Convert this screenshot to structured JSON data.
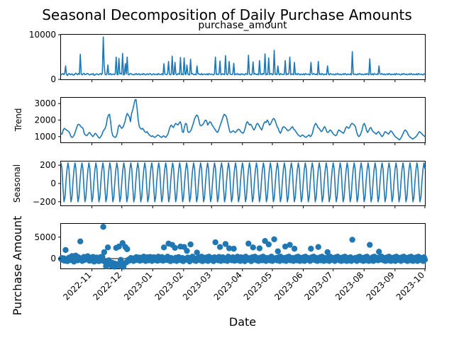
{
  "figure": {
    "title": "Seasonal Decomposition of Daily Purchase Amounts",
    "xlabel": "Date",
    "ylabel": "Purchase Amount"
  },
  "chart_data": [
    {
      "type": "line",
      "title": "purchase_amount",
      "ylabel": "",
      "x_range": [
        "2022-10-01",
        "2023-10-01"
      ],
      "ylim": [
        0,
        10000
      ],
      "yticks": [
        "0",
        "10000"
      ],
      "values": [
        1000,
        1150,
        1300,
        1050,
        1250,
        3000,
        1100,
        850,
        1200,
        1300,
        1050,
        1100,
        1250,
        1000,
        950,
        1150,
        1400,
        1200,
        1050,
        1300,
        1100,
        5600,
        1150,
        1000,
        1200,
        1350,
        1050,
        1100,
        1250,
        1300,
        1150,
        1000,
        1050,
        1200,
        1100,
        1300,
        900,
        1000,
        1150,
        1250,
        1100,
        1000,
        1200,
        1300,
        1050,
        1400,
        9500,
        3000,
        1100,
        1000,
        1200,
        3200,
        1050,
        1150,
        1300,
        1000,
        1100,
        1200,
        1050,
        1250,
        5000,
        1100,
        1000,
        4700,
        1200,
        1300,
        1150,
        5800,
        1000,
        1050,
        3500,
        1200,
        5000,
        1100,
        1000,
        1250,
        1300,
        1150,
        1050,
        1000,
        1200,
        1100,
        1300,
        1050,
        1150,
        1250,
        1000,
        1100,
        1200,
        1050,
        1300,
        1100,
        1000,
        1150,
        1250,
        1050,
        1200,
        1300,
        1100,
        1000,
        1150,
        1250,
        1050,
        1100,
        1200,
        1000,
        1300,
        1150,
        1050,
        1100,
        1250,
        1000,
        3500,
        1200,
        1100,
        1050,
        1300,
        4000,
        1150,
        1000,
        1200,
        5200,
        1100,
        1050,
        3800,
        1250,
        1000,
        1150,
        1300,
        1100,
        4900,
        1050,
        1200,
        1000,
        4800,
        1150,
        1100,
        3200,
        1250,
        1050,
        1000,
        4500,
        1200,
        1300,
        1100,
        1050,
        1150,
        1000,
        3000,
        1200,
        1250,
        1100,
        1050,
        1300,
        1000,
        1150,
        1200,
        1100,
        1050,
        1250,
        1000,
        1300,
        1150,
        1100,
        1200,
        1050,
        1000,
        1250,
        5000,
        1100,
        1200,
        1050,
        1300,
        4100,
        1000,
        1150,
        1250,
        1100,
        1050,
        5300,
        1200,
        1000,
        1300,
        4000,
        1150,
        1100,
        1050,
        1250,
        3600,
        1000,
        1200,
        1100,
        1300,
        1050,
        1150,
        1000,
        1250,
        1100,
        1200,
        1050,
        1000,
        1300,
        1150,
        1100,
        5400,
        1200,
        1050,
        1000,
        1250,
        3900,
        1100,
        1300,
        1150,
        1050,
        1200,
        1000,
        4200,
        1100,
        1250,
        1050,
        1300,
        1150,
        5700,
        1000,
        1200,
        1100,
        4800,
        1050,
        1250,
        1300,
        1000,
        1150,
        6500,
        1100,
        1200,
        1050,
        3000,
        1250,
        1000,
        1300,
        1150,
        1100,
        1050,
        1200,
        4200,
        1000,
        1250,
        1100,
        1300,
        5000,
        1050,
        1150,
        1200,
        1000,
        3800,
        1100,
        1250,
        1050,
        1300,
        1150,
        1000,
        1200,
        1100,
        1050,
        1250,
        1000,
        1300,
        1150,
        1100,
        1200,
        1050,
        1000,
        3800,
        1250,
        1100,
        1300,
        1150,
        1050,
        1200,
        1000,
        4000,
        1100,
        1250,
        1050,
        1300,
        1150,
        1000,
        1200,
        1100,
        1050,
        3000,
        1250,
        1000,
        1300,
        1150,
        1100,
        1200,
        1050,
        1000,
        1250,
        1100,
        1300,
        1150,
        1050,
        1200,
        1000,
        1100,
        1250,
        1050,
        1300,
        1150,
        1000,
        1200,
        1100,
        1050,
        1250,
        1000,
        6200,
        1150,
        1100,
        1200,
        1050,
        1000,
        1250,
        1100,
        1300,
        1150,
        1050,
        1200,
        1000,
        1100,
        1250,
        1050,
        1300,
        1150,
        1000,
        4600,
        1100,
        1050,
        1250,
        1000,
        1300,
        1150,
        1100,
        1200,
        1050,
        3000,
        1250,
        1100,
        1300,
        1150,
        1050,
        1200,
        1000,
        1100,
        1250,
        1050,
        1300,
        1150,
        1000,
        1200,
        1100,
        1050,
        1250,
        1000,
        1300,
        1150,
        1100,
        1200,
        1050,
        1000,
        1250,
        1100,
        1300,
        1150,
        1050,
        1200,
        1000,
        1100,
        1250,
        1050,
        1300,
        1150,
        1000,
        1200,
        1100,
        1050,
        1250,
        1000,
        1300,
        1150,
        1100,
        1200,
        1050,
        1000,
        1250,
        1100
      ]
    },
    {
      "type": "line",
      "title": "",
      "ylabel": "Trend",
      "x_range": [
        "2022-10-01",
        "2023-10-01"
      ],
      "ylim": [
        650,
        3350
      ],
      "yticks": [
        "1000",
        "2000",
        "3000"
      ],
      "values": [
        1200,
        1150,
        1400,
        1500,
        1450,
        1400,
        1350,
        1300,
        1200,
        1000,
        950,
        1000,
        1100,
        1300,
        1500,
        1700,
        1750,
        1700,
        1600,
        1550,
        1500,
        1200,
        1100,
        1050,
        1100,
        1200,
        1250,
        1150,
        1050,
        1000,
        1100,
        1200,
        1150,
        1050,
        950,
        900,
        1000,
        1100,
        1300,
        1400,
        1500,
        1700,
        2100,
        2300,
        2350,
        1900,
        1300,
        1050,
        1000,
        950,
        1000,
        1200,
        1600,
        1700,
        1600,
        1500,
        1550,
        1700,
        1900,
        2200,
        2400,
        2300,
        2200,
        1900,
        2400,
        2600,
        2900,
        3200,
        3250,
        2700,
        2000,
        1600,
        1500,
        1450,
        1500,
        1400,
        1300,
        1250,
        1300,
        1200,
        1100,
        1050,
        1000,
        1050,
        1000,
        950,
        1000,
        1050,
        1100,
        1050,
        1000,
        950,
        1000,
        1050,
        1000,
        950,
        1050,
        1150,
        1400,
        1600,
        1700,
        1600,
        1550,
        1700,
        1800,
        1750,
        1700,
        1800,
        1900,
        1750,
        1300,
        1250,
        1600,
        1800,
        1750,
        1300,
        1250,
        1300,
        1400,
        1600,
        1800,
        2050,
        2200,
        2300,
        2250,
        2000,
        1700,
        1650,
        1700,
        1750,
        1900,
        2000,
        1950,
        1700,
        1800,
        1900,
        1850,
        1700,
        1600,
        1500,
        1400,
        1300,
        1250,
        1400,
        1600,
        1800,
        2000,
        2200,
        2350,
        2300,
        2200,
        1900,
        1600,
        1300,
        1250,
        1300,
        1350,
        1300,
        1250,
        1300,
        1400,
        1450,
        1400,
        1300,
        1250,
        1200,
        1300,
        1500,
        1800,
        1900,
        1800,
        1700,
        1750,
        1650,
        1500,
        1400,
        1500,
        1700,
        1800,
        1750,
        1600,
        1500,
        1400,
        1600,
        1800,
        1900,
        1850,
        2000,
        1900,
        1700,
        1750,
        1900,
        2050,
        2100,
        2000,
        1800,
        1600,
        1500,
        1300,
        1200,
        1350,
        1550,
        1600,
        1550,
        1500,
        1400,
        1350,
        1400,
        1450,
        1550,
        1600,
        1450,
        1400,
        1300,
        1200,
        1100,
        1050,
        1000,
        1050,
        1100,
        1050,
        1000,
        950,
        1000,
        1050,
        1100,
        1000,
        1050,
        1200,
        1500,
        1700,
        1800,
        1700,
        1550,
        1500,
        1400,
        1300,
        1350,
        1500,
        1600,
        1500,
        1300,
        1250,
        1300,
        1400,
        1350,
        1250,
        1150,
        1100,
        1050,
        1100,
        1300,
        1400,
        1350,
        1300,
        1250,
        1200,
        1300,
        1500,
        1600,
        1550,
        1500,
        1600,
        1750,
        1800,
        1750,
        1700,
        1600,
        1300,
        1100,
        1000,
        1050,
        1200,
        1400,
        1700,
        1800,
        1650,
        1400,
        1250,
        1350,
        1500,
        1550,
        1400,
        1300,
        1250,
        1200,
        1150,
        1250,
        1300,
        1200,
        1100,
        1000,
        1050,
        1200,
        1300,
        1250,
        1200,
        1150,
        1250,
        1350,
        1300,
        1200,
        1100,
        1000,
        950,
        900,
        850,
        800,
        900,
        1000,
        1150,
        1300,
        1400,
        1350,
        1250,
        1100,
        1000,
        950,
        900,
        850,
        900,
        950,
        1000,
        1100,
        1200,
        1300,
        1250,
        1200,
        1100,
        1050,
        1000
      ]
    },
    {
      "type": "line",
      "title": "",
      "ylabel": "Seasonal",
      "x_range": [
        "2022-10-01",
        "2023-10-01"
      ],
      "ylim": [
        -240,
        240
      ],
      "yticks": [
        "−200",
        "0",
        "200"
      ],
      "period_days": 7,
      "cycle": [
        225,
        160,
        -50,
        -200,
        -150,
        20,
        150
      ]
    },
    {
      "type": "scatter",
      "title": "",
      "ylabel": "",
      "x_range": [
        "2022-10-01",
        "2023-10-01"
      ],
      "ylim": [
        -2300,
        8100
      ],
      "yticks": [
        "0",
        "5000"
      ],
      "values": [
        -80,
        120,
        -300,
        50,
        -500,
        2000,
        -200,
        -600,
        100,
        250,
        -350,
        -150,
        600,
        -450,
        -700,
        -50,
        700,
        150,
        -400,
        300,
        -100,
        4000,
        -250,
        -550,
        200,
        400,
        -300,
        -100,
        350,
        550,
        50,
        -500,
        -350,
        250,
        -100,
        400,
        -700,
        -500,
        -150,
        250,
        -200,
        -600,
        150,
        350,
        -450,
        450,
        7400,
        1500,
        -800,
        -1800,
        -1300,
        2600,
        -400,
        -1000,
        -1400,
        -1700,
        -1000,
        -1600,
        -1900,
        -1200,
        2500,
        -1300,
        -1600,
        2800,
        -1100,
        -300,
        -1800,
        3600,
        -1900,
        -1100,
        2700,
        -900,
        2200,
        -300,
        -500,
        -100,
        150,
        -300,
        -400,
        -550,
        100,
        -200,
        350,
        -350,
        -50,
        250,
        -500,
        -150,
        200,
        -300,
        450,
        -100,
        -550,
        50,
        300,
        -400,
        150,
        400,
        -100,
        -550,
        50,
        300,
        -350,
        -100,
        250,
        -500,
        450,
        50,
        -350,
        -100,
        350,
        -500,
        2600,
        100,
        -200,
        -350,
        450,
        3500,
        -50,
        -600,
        150,
        3200,
        -250,
        -400,
        2500,
        200,
        -550,
        -100,
        350,
        -250,
        2800,
        -400,
        150,
        -600,
        2700,
        -50,
        -250,
        1800,
        250,
        -400,
        -650,
        3300,
        100,
        450,
        -200,
        -400,
        -50,
        -550,
        1400,
        150,
        300,
        -300,
        -400,
        450,
        -600,
        -100,
        200,
        -250,
        -400,
        300,
        -550,
        450,
        -50,
        -250,
        150,
        -400,
        -600,
        300,
        3800,
        -200,
        150,
        -400,
        400,
        2700,
        -550,
        -100,
        300,
        -250,
        -400,
        3400,
        100,
        -550,
        450,
        2400,
        -50,
        -250,
        -400,
        300,
        2300,
        -500,
        150,
        -250,
        450,
        -400,
        -50,
        -550,
        300,
        -250,
        150,
        -400,
        -600,
        450,
        -50,
        -250,
        3500,
        100,
        -400,
        -600,
        300,
        2600,
        -250,
        450,
        -50,
        -400,
        150,
        -550,
        2400,
        -250,
        300,
        -400,
        450,
        -50,
        4100,
        -550,
        150,
        -250,
        3300,
        -400,
        300,
        450,
        -550,
        -50,
        4500,
        -250,
        150,
        -400,
        1700,
        300,
        -550,
        450,
        -50,
        -250,
        -400,
        150,
        2800,
        -550,
        300,
        -250,
        450,
        3200,
        -400,
        -50,
        150,
        -550,
        2300,
        -250,
        300,
        -400,
        450,
        -50,
        -550,
        150,
        -250,
        -400,
        300,
        -550,
        450,
        -50,
        -250,
        150,
        -400,
        -550,
        2300,
        300,
        -250,
        450,
        -50,
        -400,
        150,
        -550,
        2700,
        -250,
        300,
        -400,
        450,
        -50,
        -550,
        150,
        -250,
        -400,
        1500,
        300,
        -550,
        450,
        -50,
        -250,
        150,
        -400,
        -550,
        300,
        -250,
        450,
        -50,
        -400,
        150,
        -550,
        -250,
        300,
        -400,
        450,
        -50,
        -550,
        150,
        -250,
        -400,
        300,
        -550,
        4400,
        -50,
        -250,
        150,
        -400,
        -550,
        300,
        -250,
        450,
        -50,
        -400,
        150,
        -550,
        -250,
        300,
        -400,
        450,
        -50,
        -550,
        3200,
        -250,
        -400,
        300,
        -550,
        450,
        -50,
        -250,
        150,
        -400,
        1600,
        300,
        -250,
        450,
        -50,
        -400,
        150,
        -550,
        -250,
        300,
        -400,
        450,
        -50,
        -550,
        150,
        -250,
        -400,
        300,
        -550,
        450,
        -50,
        -250,
        150,
        -400,
        -550,
        300,
        -250,
        450,
        -50,
        -400,
        150,
        -550,
        -250,
        300,
        -400,
        450,
        -50,
        -550,
        150,
        -250,
        -400,
        300,
        -550,
        450,
        -50,
        -250,
        150,
        -400,
        -550,
        300,
        -250
      ]
    }
  ],
  "x_ticks": [
    "2022-11",
    "2022-12",
    "2023-01",
    "2023-02",
    "2023-03",
    "2023-04",
    "2023-05",
    "2023-06",
    "2023-07",
    "2023-08",
    "2023-09",
    "2023-10"
  ]
}
